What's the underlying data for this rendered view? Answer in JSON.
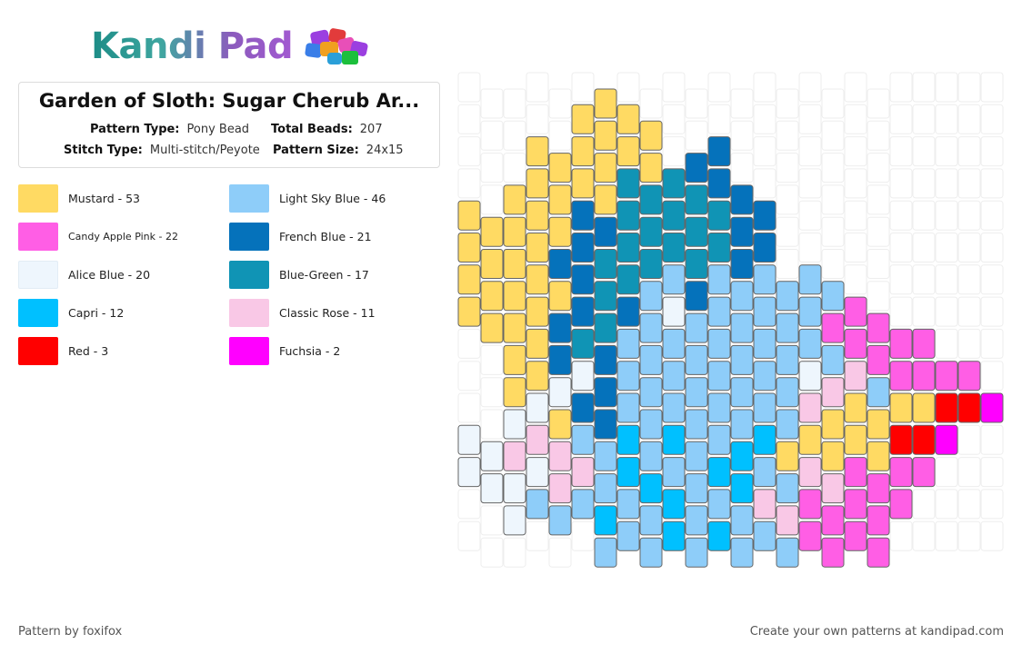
{
  "logo": {
    "text": "Kandi Pad"
  },
  "pattern": {
    "title": "Garden of Sloth: Sugar Cherub Ar...",
    "type_label": "Pattern Type:",
    "type_value": "Pony Bead",
    "beads_label": "Total Beads:",
    "beads_value": "207",
    "stitch_label": "Stitch Type:",
    "stitch_value": "Multi-stitch/Peyote",
    "size_label": "Pattern Size:",
    "size_value": "24x15"
  },
  "legend": [
    {
      "label": "Mustard - 53",
      "color": "#FFDA63"
    },
    {
      "label": "Light Sky Blue - 46",
      "color": "#8ECDF9"
    },
    {
      "label": "Candy Apple Pink - 22",
      "color": "#FF5EE5"
    },
    {
      "label": "French Blue - 21",
      "color": "#0572BB"
    },
    {
      "label": "Alice Blue - 20",
      "color": "#EEF6FD"
    },
    {
      "label": "Blue-Green - 17",
      "color": "#1094B5"
    },
    {
      "label": "Capri - 12",
      "color": "#00C0FF"
    },
    {
      "label": "Classic Rose - 11",
      "color": "#F9C8E6"
    },
    {
      "label": "Red - 3",
      "color": "#FF0000"
    },
    {
      "label": "Fuchsia - 2",
      "color": "#FF00FF"
    }
  ],
  "footer": {
    "left": "Pattern by foxifox",
    "right": "Create your own patterns at kandipad.com"
  }
}
